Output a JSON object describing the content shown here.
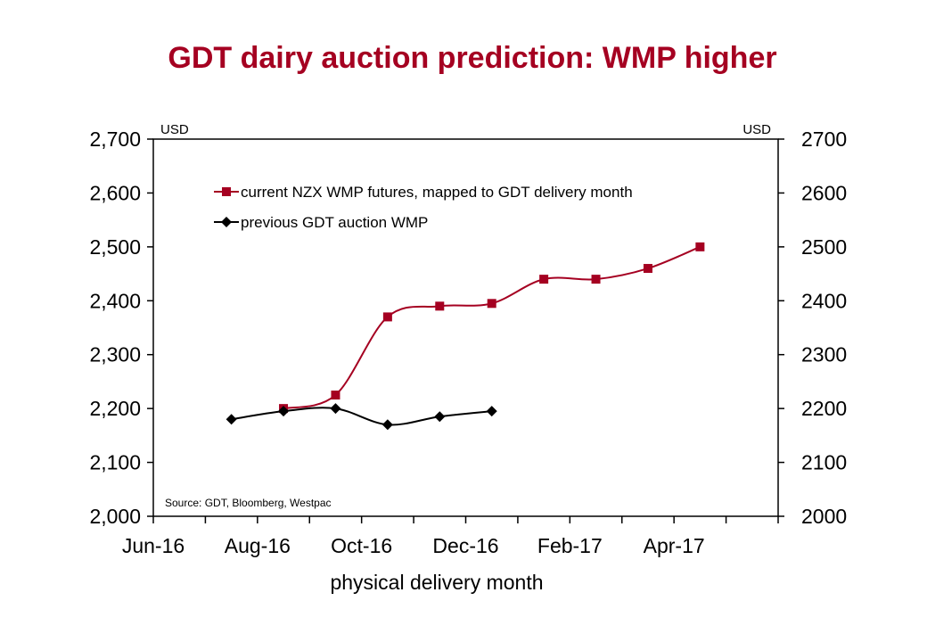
{
  "chart_data": {
    "type": "line",
    "title": "GDT dairy auction prediction: WMP higher",
    "xlabel": "physical delivery month",
    "ylabel_left": "USD",
    "ylabel_right": "USD",
    "ylim": [
      2000,
      2700
    ],
    "yticks_left": [
      "2,000",
      "2,100",
      "2,200",
      "2,300",
      "2,400",
      "2,500",
      "2,600",
      "2,700"
    ],
    "yticks_right": [
      "2000",
      "2100",
      "2200",
      "2300",
      "2400",
      "2500",
      "2600",
      "2700"
    ],
    "months": [
      "Jun-16",
      "Jul-16",
      "Aug-16",
      "Sep-16",
      "Oct-16",
      "Nov-16",
      "Dec-16",
      "Jan-17",
      "Feb-17",
      "Mar-17",
      "Apr-17",
      "May-17"
    ],
    "xtick_labels": [
      {
        "month": "Jun-16",
        "label": "Jun-16"
      },
      {
        "month": "Aug-16",
        "label": "Aug-16"
      },
      {
        "month": "Oct-16",
        "label": "Oct-16"
      },
      {
        "month": "Dec-16",
        "label": "Dec-16"
      },
      {
        "month": "Feb-17",
        "label": "Feb-17"
      },
      {
        "month": "Apr-17",
        "label": "Apr-17"
      }
    ],
    "series": [
      {
        "name": "current NZX WMP futures, mapped to GDT delivery month",
        "color": "#a50021",
        "marker": "square",
        "x": [
          "Aug-16",
          "Sep-16",
          "Oct-16",
          "Nov-16",
          "Dec-16",
          "Jan-17",
          "Feb-17",
          "Mar-17",
          "Apr-17"
        ],
        "values": [
          2200,
          2225,
          2370,
          2390,
          2395,
          2440,
          2440,
          2460,
          2500
        ]
      },
      {
        "name": "previous GDT auction WMP",
        "color": "#000000",
        "marker": "diamond",
        "x": [
          "Jul-16",
          "Aug-16",
          "Sep-16",
          "Oct-16",
          "Nov-16",
          "Dec-16"
        ],
        "values": [
          2180,
          2195,
          2200,
          2170,
          2185,
          2195
        ]
      }
    ],
    "annotations": [
      "Source: GDT, Bloomberg, Westpac"
    ],
    "legend_position": "top-left inside"
  }
}
